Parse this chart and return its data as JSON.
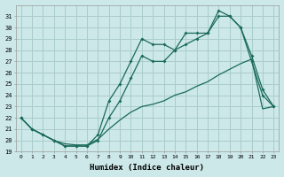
{
  "xlabel": "Humidex (Indice chaleur)",
  "background_color": "#cce8e8",
  "grid_color": "#aacccc",
  "line_color": "#1a6a5a",
  "xlim": [
    -0.5,
    23.5
  ],
  "ylim": [
    19,
    32
  ],
  "yticks": [
    19,
    20,
    21,
    22,
    23,
    24,
    25,
    26,
    27,
    28,
    29,
    30,
    31
  ],
  "xticks": [
    0,
    1,
    2,
    3,
    4,
    5,
    6,
    7,
    8,
    9,
    10,
    11,
    12,
    13,
    14,
    15,
    16,
    17,
    18,
    19,
    20,
    21,
    22,
    23
  ],
  "series1_x": [
    0,
    1,
    2,
    3,
    4,
    5,
    6,
    7,
    8,
    9,
    10,
    11,
    12,
    13,
    14,
    15,
    16,
    17,
    18,
    19,
    20,
    21,
    22,
    23
  ],
  "series1_y": [
    22,
    21,
    20.5,
    20,
    19.5,
    19.5,
    19.5,
    20.5,
    23.5,
    25,
    27,
    29,
    28.5,
    28.5,
    28,
    29.5,
    29.5,
    29.5,
    31,
    31,
    30,
    27,
    24,
    23
  ],
  "series2_x": [
    0,
    1,
    2,
    3,
    4,
    5,
    6,
    7,
    8,
    9,
    10,
    11,
    12,
    13,
    14,
    15,
    16,
    17,
    18,
    19,
    20,
    21,
    22,
    23
  ],
  "series2_y": [
    22,
    21,
    20.5,
    20,
    19.5,
    19.5,
    19.5,
    20,
    22,
    23.5,
    25.5,
    27.5,
    27,
    27,
    28,
    28.5,
    29,
    29.5,
    31.5,
    31,
    30,
    27.5,
    24.5,
    23
  ],
  "series3_x": [
    0,
    1,
    2,
    3,
    4,
    5,
    6,
    7,
    8,
    9,
    10,
    11,
    12,
    13,
    14,
    15,
    16,
    17,
    18,
    19,
    20,
    21,
    22,
    23
  ],
  "series3_y": [
    22,
    21,
    20.5,
    20,
    19.7,
    19.6,
    19.6,
    20.1,
    21,
    21.8,
    22.5,
    23,
    23.2,
    23.5,
    24,
    24.3,
    24.8,
    25.2,
    25.8,
    26.3,
    26.8,
    27.2,
    22.8,
    23
  ]
}
